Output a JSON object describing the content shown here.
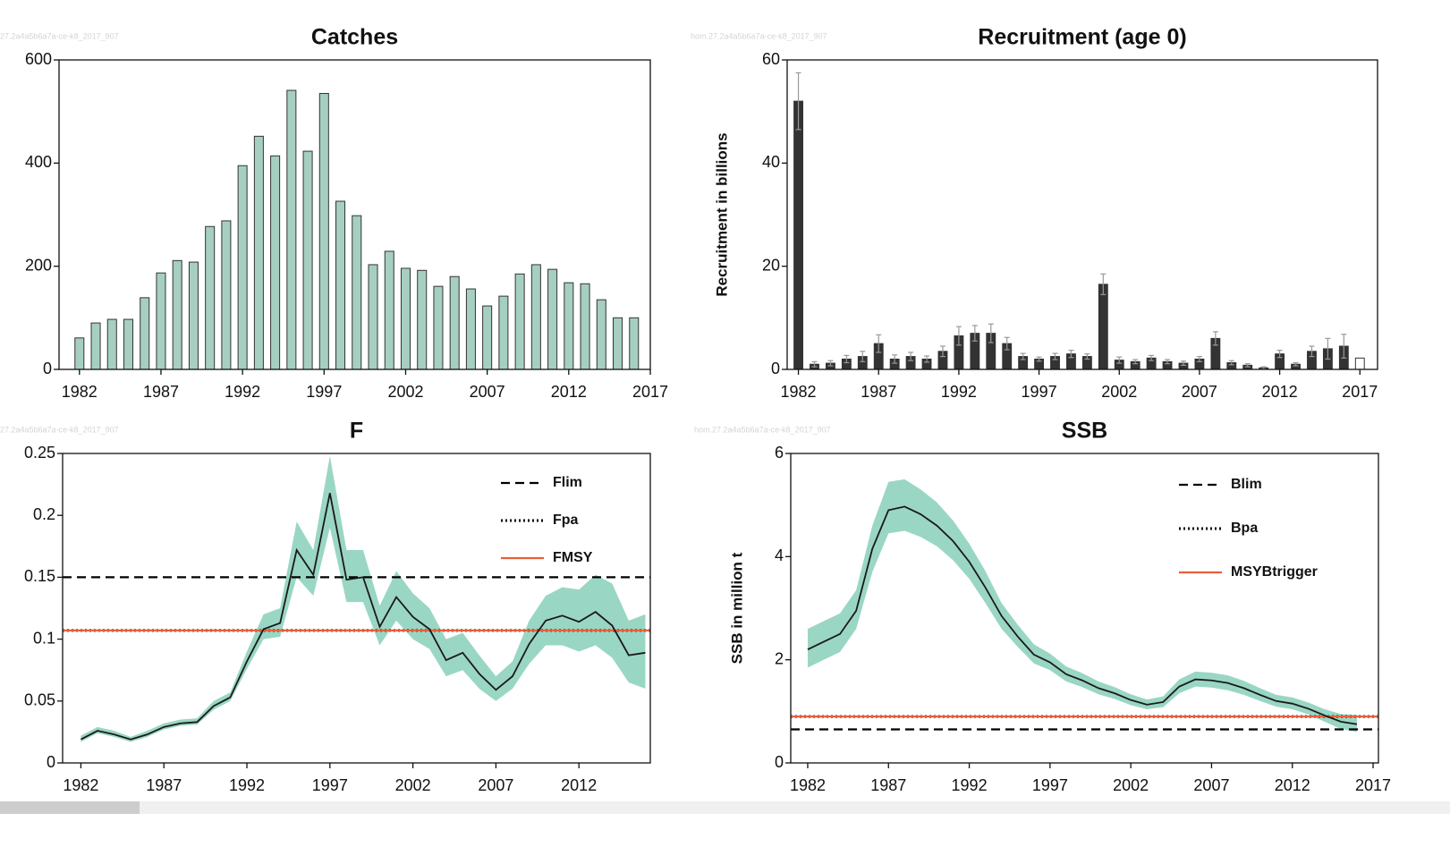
{
  "chart_data": [
    {
      "type": "bar",
      "title": "Catches",
      "watermark": "27.2a4a5b6a7a-ce-k8_2017_907",
      "x": [
        1982,
        1983,
        1984,
        1985,
        1986,
        1987,
        1988,
        1989,
        1990,
        1991,
        1992,
        1993,
        1994,
        1995,
        1996,
        1997,
        1998,
        1999,
        2000,
        2001,
        2002,
        2003,
        2004,
        2005,
        2006,
        2007,
        2008,
        2009,
        2010,
        2011,
        2012,
        2013,
        2014,
        2015,
        2016
      ],
      "values": [
        61,
        90,
        97,
        97,
        139,
        187,
        211,
        208,
        277,
        288,
        395,
        452,
        414,
        541,
        423,
        535,
        326,
        298,
        203,
        229,
        196,
        192,
        161,
        180,
        156,
        123,
        142,
        185,
        203,
        194,
        168,
        166,
        135,
        100,
        100
      ],
      "color": "#a6cfc1",
      "xlim": [
        1980.75,
        2017
      ],
      "xticks": [
        1982,
        1987,
        1992,
        1997,
        2002,
        2007,
        2012,
        2017
      ],
      "ylim": [
        0,
        600
      ],
      "yticks": [
        0,
        200,
        400,
        600
      ]
    },
    {
      "type": "bar",
      "title": "Recruitment (age 0)",
      "y_label": "Recruitment in billions",
      "watermark": "hom.27.2a4a5b6a7a-ce-k8_2017_907",
      "x": [
        1982,
        1983,
        1984,
        1985,
        1986,
        1987,
        1988,
        1989,
        1990,
        1991,
        1992,
        1993,
        1994,
        1995,
        1996,
        1997,
        1998,
        1999,
        2000,
        2001,
        2002,
        2003,
        2004,
        2005,
        2006,
        2007,
        2008,
        2009,
        2010,
        2011,
        2012,
        2013,
        2014,
        2015,
        2016,
        2017
      ],
      "values": [
        52,
        1,
        1.2,
        2,
        2.5,
        5,
        2,
        2.5,
        2,
        3.5,
        6.5,
        7,
        7,
        5,
        2.5,
        2,
        2.5,
        3,
        2.5,
        16.5,
        1.8,
        1.5,
        2.2,
        1.5,
        1.2,
        2,
        6,
        1.3,
        0.8,
        0.3,
        3,
        1,
        3.5,
        4,
        4.5,
        2.2
      ],
      "errors": [
        5.5,
        0.5,
        0.5,
        0.7,
        1,
        1.7,
        0.8,
        0.8,
        0.6,
        1,
        1.8,
        1.5,
        1.8,
        1.2,
        0.6,
        0.4,
        0.6,
        0.7,
        0.5,
        2,
        0.6,
        0.4,
        0.5,
        0.4,
        0.4,
        0.5,
        1.3,
        0.4,
        0.3,
        0.2,
        0.7,
        0.3,
        1,
        2,
        2.3,
        null
      ],
      "colors": [
        "#333333",
        "#333333",
        "#333333",
        "#333333",
        "#333333",
        "#333333",
        "#333333",
        "#333333",
        "#333333",
        "#333333",
        "#333333",
        "#333333",
        "#333333",
        "#333333",
        "#333333",
        "#333333",
        "#333333",
        "#333333",
        "#333333",
        "#333333",
        "#333333",
        "#333333",
        "#333333",
        "#333333",
        "#333333",
        "#333333",
        "#333333",
        "#333333",
        "#333333",
        "#333333",
        "#333333",
        "#333333",
        "#333333",
        "#333333",
        "#333333",
        "#ffffff"
      ],
      "error_color": "#999999",
      "xlim": [
        1981.3,
        2018.1
      ],
      "xticks": [
        1982,
        1987,
        1992,
        1997,
        2002,
        2007,
        2012,
        2017
      ],
      "ylim": [
        0,
        60
      ],
      "yticks": [
        0,
        20,
        40,
        60
      ]
    },
    {
      "type": "line",
      "title": "F",
      "watermark": "27.2a4a5b6a7a-ce-k8_2017_907",
      "x": [
        1982,
        1983,
        1984,
        1985,
        1986,
        1987,
        1988,
        1989,
        1990,
        1991,
        1992,
        1993,
        1994,
        1995,
        1996,
        1997,
        1998,
        1999,
        2000,
        2001,
        2002,
        2003,
        2004,
        2005,
        2006,
        2007,
        2008,
        2009,
        2010,
        2011,
        2012,
        2013,
        2014,
        2015,
        2016
      ],
      "values": [
        0.019,
        0.026,
        0.023,
        0.019,
        0.023,
        0.029,
        0.032,
        0.033,
        0.046,
        0.053,
        0.082,
        0.108,
        0.113,
        0.172,
        0.152,
        0.218,
        0.148,
        0.15,
        0.11,
        0.134,
        0.118,
        0.108,
        0.083,
        0.089,
        0.072,
        0.059,
        0.07,
        0.096,
        0.115,
        0.119,
        0.114,
        0.122,
        0.111,
        0.087,
        0.089
      ],
      "lower": [
        0.017,
        0.024,
        0.021,
        0.017,
        0.021,
        0.027,
        0.03,
        0.031,
        0.043,
        0.05,
        0.076,
        0.1,
        0.102,
        0.15,
        0.135,
        0.19,
        0.13,
        0.13,
        0.095,
        0.115,
        0.1,
        0.092,
        0.07,
        0.075,
        0.06,
        0.05,
        0.06,
        0.08,
        0.095,
        0.095,
        0.09,
        0.095,
        0.085,
        0.065,
        0.06
      ],
      "upper": [
        0.022,
        0.029,
        0.026,
        0.021,
        0.026,
        0.032,
        0.035,
        0.036,
        0.05,
        0.057,
        0.09,
        0.12,
        0.125,
        0.195,
        0.172,
        0.248,
        0.172,
        0.172,
        0.127,
        0.155,
        0.137,
        0.125,
        0.1,
        0.105,
        0.087,
        0.07,
        0.082,
        0.115,
        0.135,
        0.142,
        0.14,
        0.152,
        0.145,
        0.115,
        0.12
      ],
      "color": "#1a1a1a",
      "band_color": "#9ad6c4",
      "reference_lines": [
        {
          "name": "Flim",
          "value": 0.15,
          "color": "#000000",
          "dash": "dashed"
        },
        {
          "name": "Fpa",
          "value": 0.107,
          "color": "#000000",
          "dash": "dotted"
        },
        {
          "name": "FMSY",
          "value": 0.107,
          "color": "#e8603a",
          "dash": "solid"
        }
      ],
      "legend": "upper right",
      "xlim": [
        1980.9,
        2016.3
      ],
      "xticks": [
        1982,
        1987,
        1992,
        1997,
        2002,
        2007,
        2012
      ],
      "ylim": [
        0,
        0.25
      ],
      "yticks": [
        0,
        0.05,
        0.1,
        0.15,
        0.2,
        0.25
      ]
    },
    {
      "type": "line",
      "title": "SSB",
      "y_label": "SSB in million t",
      "watermark": "hom.27.2a4a5b6a7a-ce-k8_2017_907",
      "x": [
        1982,
        1983,
        1984,
        1985,
        1986,
        1987,
        1988,
        1989,
        1990,
        1991,
        1992,
        1993,
        1994,
        1995,
        1996,
        1997,
        1998,
        1999,
        2000,
        2001,
        2002,
        2003,
        2004,
        2005,
        2006,
        2007,
        2008,
        2009,
        2010,
        2011,
        2012,
        2013,
        2014,
        2015,
        2016
      ],
      "values": [
        2.2,
        2.35,
        2.5,
        2.95,
        4.15,
        4.9,
        4.97,
        4.82,
        4.6,
        4.3,
        3.9,
        3.4,
        2.85,
        2.45,
        2.1,
        1.95,
        1.72,
        1.6,
        1.45,
        1.35,
        1.22,
        1.13,
        1.18,
        1.48,
        1.62,
        1.6,
        1.55,
        1.45,
        1.32,
        1.2,
        1.15,
        1.05,
        0.92,
        0.8,
        0.75
      ],
      "lower": [
        1.85,
        2.0,
        2.15,
        2.6,
        3.7,
        4.45,
        4.5,
        4.38,
        4.2,
        3.93,
        3.57,
        3.1,
        2.6,
        2.25,
        1.93,
        1.8,
        1.58,
        1.47,
        1.33,
        1.24,
        1.12,
        1.04,
        1.08,
        1.35,
        1.48,
        1.46,
        1.41,
        1.32,
        1.2,
        1.09,
        1.04,
        0.94,
        0.8,
        0.66,
        0.6
      ],
      "upper": [
        2.6,
        2.75,
        2.9,
        3.35,
        4.6,
        5.45,
        5.5,
        5.3,
        5.05,
        4.7,
        4.25,
        3.72,
        3.1,
        2.68,
        2.3,
        2.12,
        1.87,
        1.74,
        1.58,
        1.47,
        1.33,
        1.23,
        1.29,
        1.62,
        1.77,
        1.75,
        1.7,
        1.59,
        1.45,
        1.32,
        1.27,
        1.17,
        1.04,
        0.95,
        0.93
      ],
      "color": "#1a1a1a",
      "band_color": "#9ad6c4",
      "reference_lines": [
        {
          "name": "Blim",
          "value": 0.65,
          "color": "#000000",
          "dash": "dashed"
        },
        {
          "name": "Bpa",
          "value": 0.9,
          "color": "#000000",
          "dash": "dotted"
        },
        {
          "name": "MSYBtrigger",
          "value": 0.9,
          "color": "#e8603a",
          "dash": "solid"
        }
      ],
      "legend": "upper right",
      "xlim": [
        1980.95,
        2017.33
      ],
      "xticks": [
        1982,
        1987,
        1992,
        1997,
        2002,
        2007,
        2012,
        2017
      ],
      "ylim": [
        0,
        6
      ],
      "yticks": [
        0,
        2,
        4,
        6
      ]
    }
  ]
}
